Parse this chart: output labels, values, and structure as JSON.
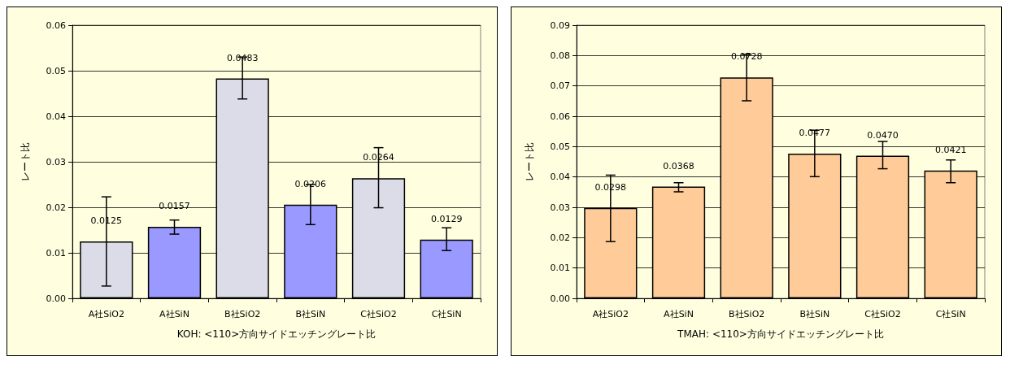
{
  "chart_data": [
    {
      "type": "bar",
      "xlabel": "KOH: <110>方向サイドエッチングレート比",
      "ylabel": "レート比",
      "categories": [
        "A社SiO2",
        "A社SiN",
        "B社SiO2",
        "B社SiN",
        "C社SiO2",
        "C社SiN"
      ],
      "values": [
        0.0125,
        0.0157,
        0.0483,
        0.0206,
        0.0264,
        0.0129
      ],
      "colors": [
        "#dcdce8",
        "#9999ff",
        "#dcdce8",
        "#9999ff",
        "#dcdce8",
        "#9999ff"
      ],
      "value_labels": [
        "0.0125",
        "0.0157",
        "0.0483",
        "0.0206",
        "0.0264",
        "0.0129"
      ],
      "errors": [
        [
          0.0027,
          0.0223
        ],
        [
          0.0141,
          0.0172
        ],
        [
          0.0438,
          0.053
        ],
        [
          0.0162,
          0.025
        ],
        [
          0.0199,
          0.0331
        ],
        [
          0.0105,
          0.0155
        ]
      ],
      "ylim": [
        0,
        0.06
      ],
      "yticks": [
        {
          "value": 0,
          "label": "0.00"
        },
        {
          "value": 0.01,
          "label": "0.01"
        },
        {
          "value": 0.02,
          "label": "0.02"
        },
        {
          "value": 0.03,
          "label": "0.03"
        },
        {
          "value": 0.04,
          "label": "0.04"
        },
        {
          "value": 0.05,
          "label": "0.05"
        },
        {
          "value": 0.06,
          "label": "0.06"
        }
      ],
      "grid": "y"
    },
    {
      "type": "bar",
      "xlabel": "TMAH: <110>方向サイドエッチングレート比",
      "ylabel": "レート比",
      "categories": [
        "A社SiO2",
        "A社SiN",
        "B社SiO2",
        "B社SiN",
        "C社SiO2",
        "C社SiN"
      ],
      "values": [
        0.0298,
        0.0368,
        0.0728,
        0.0477,
        0.047,
        0.0421
      ],
      "colors": [
        "#ffcc99",
        "#ffcc99",
        "#ffcc99",
        "#ffcc99",
        "#ffcc99",
        "#ffcc99"
      ],
      "value_labels": [
        "0.0298",
        "0.0368",
        "0.0728",
        "0.0477",
        "0.0470",
        "0.0421"
      ],
      "errors": [
        [
          0.0187,
          0.0406
        ],
        [
          0.0351,
          0.0381
        ],
        [
          0.0651,
          0.0804
        ],
        [
          0.0401,
          0.0554
        ],
        [
          0.0427,
          0.0517
        ],
        [
          0.0381,
          0.0456
        ]
      ],
      "ylim": [
        0,
        0.09
      ],
      "yticks": [
        {
          "value": 0,
          "label": "0.00"
        },
        {
          "value": 0.01,
          "label": "0.01"
        },
        {
          "value": 0.02,
          "label": "0.02"
        },
        {
          "value": 0.03,
          "label": "0.03"
        },
        {
          "value": 0.04,
          "label": "0.04"
        },
        {
          "value": 0.05,
          "label": "0.05"
        },
        {
          "value": 0.06,
          "label": "0.06"
        },
        {
          "value": 0.07,
          "label": "0.07"
        },
        {
          "value": 0.08,
          "label": "0.08"
        },
        {
          "value": 0.09,
          "label": "0.09"
        }
      ],
      "grid": "y"
    }
  ]
}
